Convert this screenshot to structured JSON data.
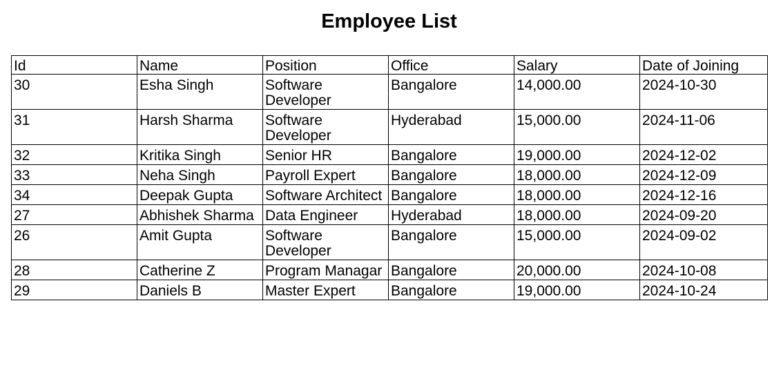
{
  "page": {
    "title": "Employee List"
  },
  "table": {
    "headers": [
      "Id",
      "Name",
      "Position",
      "Office",
      "Salary",
      "Date of Joining"
    ],
    "rows": [
      {
        "id": "30",
        "name": "Esha Singh",
        "position": "Software Developer",
        "office": "Bangalore",
        "salary": "14,000.00",
        "date": "2024-10-30"
      },
      {
        "id": "31",
        "name": "Harsh Sharma",
        "position": "Software Developer",
        "office": "Hyderabad",
        "salary": "15,000.00",
        "date": "2024-11-06"
      },
      {
        "id": "32",
        "name": "Kritika Singh",
        "position": "Senior HR",
        "office": "Bangalore",
        "salary": "19,000.00",
        "date": "2024-12-02"
      },
      {
        "id": "33",
        "name": "Neha Singh",
        "position": "Payroll Expert",
        "office": "Bangalore",
        "salary": "18,000.00",
        "date": "2024-12-09"
      },
      {
        "id": "34",
        "name": "Deepak Gupta",
        "position": "Software Architect",
        "office": "Bangalore",
        "salary": "18,000.00",
        "date": "2024-12-16"
      },
      {
        "id": "27",
        "name": "Abhishek Sharma",
        "position": "Data Engineer",
        "office": "Hyderabad",
        "salary": "18,000.00",
        "date": "2024-09-20"
      },
      {
        "id": "26",
        "name": "Amit Gupta",
        "position": "Software Developer",
        "office": "Bangalore",
        "salary": "15,000.00",
        "date": "2024-09-02"
      },
      {
        "id": "28",
        "name": "Catherine Z",
        "position": "Program Managar",
        "office": "Bangalore",
        "salary": "20,000.00",
        "date": "2024-10-08"
      },
      {
        "id": "29",
        "name": "Daniels B",
        "position": "Master Expert",
        "office": "Bangalore",
        "salary": "19,000.00",
        "date": "2024-10-24"
      }
    ]
  }
}
